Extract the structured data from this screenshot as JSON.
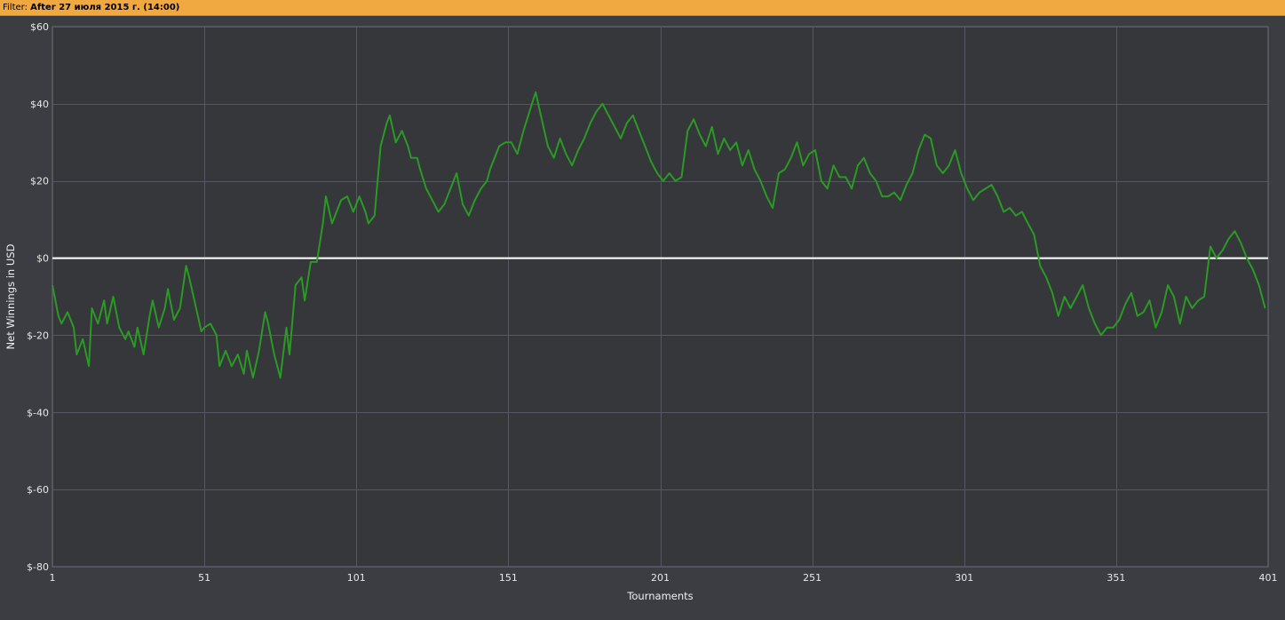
{
  "filter": {
    "label": "Filter:",
    "value": "After 27 июля 2015 г. (14:00)"
  },
  "colors": {
    "plot_background": "#35373b",
    "grid": "#555860",
    "line": "#2a9a24",
    "zero_line": "#ffffff",
    "filter_bar": "#f0a840"
  },
  "chart_data": {
    "type": "line",
    "title": "",
    "xlabel": "Tournaments",
    "ylabel": "Net Winnings in USD",
    "xlim": [
      1,
      401
    ],
    "ylim": [
      -80,
      60
    ],
    "x_ticks": [
      1,
      51,
      101,
      151,
      201,
      251,
      301,
      351,
      401
    ],
    "y_ticks": [
      60,
      40,
      20,
      0,
      -20,
      -40,
      -60,
      -80
    ],
    "y_tick_labels": [
      "$60",
      "$40",
      "$20",
      "$0",
      "$-20",
      "$-40",
      "$-60",
      "$-80"
    ],
    "grid": true,
    "legend": "none",
    "series": [
      {
        "points": [
          [
            1,
            -7
          ],
          [
            3,
            -15
          ],
          [
            4,
            -17
          ],
          [
            6,
            -14
          ],
          [
            8,
            -18
          ],
          [
            9,
            -25
          ],
          [
            11,
            -21
          ],
          [
            13,
            -28
          ],
          [
            14,
            -13
          ],
          [
            16,
            -17
          ],
          [
            18,
            -11
          ],
          [
            19,
            -17
          ],
          [
            21,
            -10
          ],
          [
            23,
            -18
          ],
          [
            25,
            -21
          ],
          [
            26,
            -19
          ],
          [
            28,
            -23
          ],
          [
            29,
            -18
          ],
          [
            31,
            -25
          ],
          [
            33,
            -15
          ],
          [
            34,
            -11
          ],
          [
            36,
            -18
          ],
          [
            38,
            -13
          ],
          [
            39,
            -8
          ],
          [
            41,
            -16
          ],
          [
            43,
            -13
          ],
          [
            45,
            -2
          ],
          [
            46,
            -5
          ],
          [
            48,
            -12
          ],
          [
            50,
            -19
          ],
          [
            51,
            -18
          ],
          [
            53,
            -17
          ],
          [
            55,
            -20
          ],
          [
            56,
            -28
          ],
          [
            58,
            -24
          ],
          [
            60,
            -28
          ],
          [
            62,
            -25
          ],
          [
            64,
            -30
          ],
          [
            65,
            -24
          ],
          [
            67,
            -31
          ],
          [
            69,
            -24
          ],
          [
            71,
            -14
          ],
          [
            72,
            -17
          ],
          [
            74,
            -25
          ],
          [
            76,
            -31
          ],
          [
            78,
            -18
          ],
          [
            79,
            -25
          ],
          [
            81,
            -7
          ],
          [
            83,
            -5
          ],
          [
            84,
            -11
          ],
          [
            86,
            -1
          ],
          [
            88,
            -1
          ],
          [
            90,
            9
          ],
          [
            91,
            16
          ],
          [
            93,
            9
          ],
          [
            95,
            13
          ],
          [
            96,
            15
          ],
          [
            98,
            16
          ],
          [
            100,
            12
          ],
          [
            102,
            16
          ],
          [
            104,
            12
          ],
          [
            105,
            9
          ],
          [
            107,
            11
          ],
          [
            109,
            29
          ],
          [
            111,
            35
          ],
          [
            112,
            37
          ],
          [
            114,
            30
          ],
          [
            116,
            33
          ],
          [
            118,
            29
          ],
          [
            119,
            26
          ],
          [
            121,
            26
          ],
          [
            122,
            23
          ],
          [
            124,
            18
          ],
          [
            126,
            15
          ],
          [
            128,
            12
          ],
          [
            130,
            14
          ],
          [
            132,
            18
          ],
          [
            134,
            22
          ],
          [
            136,
            14
          ],
          [
            138,
            11
          ],
          [
            140,
            15
          ],
          [
            142,
            18
          ],
          [
            144,
            20
          ],
          [
            145,
            23
          ],
          [
            148,
            29
          ],
          [
            150,
            30
          ],
          [
            152,
            30
          ],
          [
            154,
            27
          ],
          [
            156,
            33
          ],
          [
            158,
            38
          ],
          [
            160,
            43
          ],
          [
            162,
            36
          ],
          [
            164,
            29
          ],
          [
            166,
            26
          ],
          [
            168,
            31
          ],
          [
            170,
            27
          ],
          [
            172,
            24
          ],
          [
            174,
            28
          ],
          [
            176,
            31
          ],
          [
            178,
            35
          ],
          [
            180,
            38
          ],
          [
            182,
            40
          ],
          [
            184,
            37
          ],
          [
            186,
            34
          ],
          [
            188,
            31
          ],
          [
            190,
            35
          ],
          [
            192,
            37
          ],
          [
            194,
            33
          ],
          [
            196,
            29
          ],
          [
            198,
            25
          ],
          [
            200,
            22
          ],
          [
            202,
            20
          ],
          [
            204,
            22
          ],
          [
            206,
            20
          ],
          [
            208,
            21
          ],
          [
            210,
            33
          ],
          [
            212,
            36
          ],
          [
            214,
            32
          ],
          [
            216,
            29
          ],
          [
            218,
            34
          ],
          [
            220,
            27
          ],
          [
            222,
            31
          ],
          [
            224,
            28
          ],
          [
            226,
            30
          ],
          [
            228,
            24
          ],
          [
            230,
            28
          ],
          [
            232,
            23
          ],
          [
            234,
            20
          ],
          [
            236,
            16
          ],
          [
            238,
            13
          ],
          [
            240,
            22
          ],
          [
            242,
            23
          ],
          [
            244,
            26
          ],
          [
            246,
            30
          ],
          [
            248,
            24
          ],
          [
            250,
            27
          ],
          [
            252,
            28
          ],
          [
            254,
            20
          ],
          [
            256,
            18
          ],
          [
            258,
            24
          ],
          [
            260,
            21
          ],
          [
            262,
            21
          ],
          [
            264,
            18
          ],
          [
            266,
            24
          ],
          [
            268,
            26
          ],
          [
            270,
            22
          ],
          [
            272,
            20
          ],
          [
            274,
            16
          ],
          [
            276,
            16
          ],
          [
            278,
            17
          ],
          [
            280,
            15
          ],
          [
            282,
            19
          ],
          [
            284,
            22
          ],
          [
            286,
            28
          ],
          [
            288,
            32
          ],
          [
            290,
            31
          ],
          [
            292,
            24
          ],
          [
            294,
            22
          ],
          [
            296,
            24
          ],
          [
            298,
            28
          ],
          [
            300,
            22
          ],
          [
            302,
            18
          ],
          [
            304,
            15
          ],
          [
            306,
            17
          ],
          [
            308,
            18
          ],
          [
            310,
            19
          ],
          [
            312,
            16
          ],
          [
            314,
            12
          ],
          [
            316,
            13
          ],
          [
            318,
            11
          ],
          [
            320,
            12
          ],
          [
            322,
            9
          ],
          [
            324,
            6
          ],
          [
            326,
            -2
          ],
          [
            328,
            -5
          ],
          [
            330,
            -9
          ],
          [
            332,
            -15
          ],
          [
            334,
            -10
          ],
          [
            336,
            -13
          ],
          [
            338,
            -10
          ],
          [
            340,
            -7
          ],
          [
            342,
            -13
          ],
          [
            344,
            -17
          ],
          [
            346,
            -20
          ],
          [
            348,
            -18
          ],
          [
            350,
            -18
          ],
          [
            352,
            -16
          ],
          [
            354,
            -12
          ],
          [
            356,
            -9
          ],
          [
            358,
            -15
          ],
          [
            360,
            -14
          ],
          [
            362,
            -11
          ],
          [
            364,
            -18
          ],
          [
            366,
            -14
          ],
          [
            368,
            -7
          ],
          [
            370,
            -10
          ],
          [
            372,
            -17
          ],
          [
            374,
            -10
          ],
          [
            376,
            -13
          ],
          [
            378,
            -11
          ],
          [
            380,
            -10
          ],
          [
            382,
            3
          ],
          [
            384,
            0
          ],
          [
            386,
            2
          ],
          [
            388,
            5
          ],
          [
            390,
            7
          ],
          [
            392,
            4
          ],
          [
            394,
            0
          ],
          [
            396,
            -3
          ],
          [
            398,
            -7
          ],
          [
            400,
            -13
          ]
        ]
      }
    ]
  }
}
